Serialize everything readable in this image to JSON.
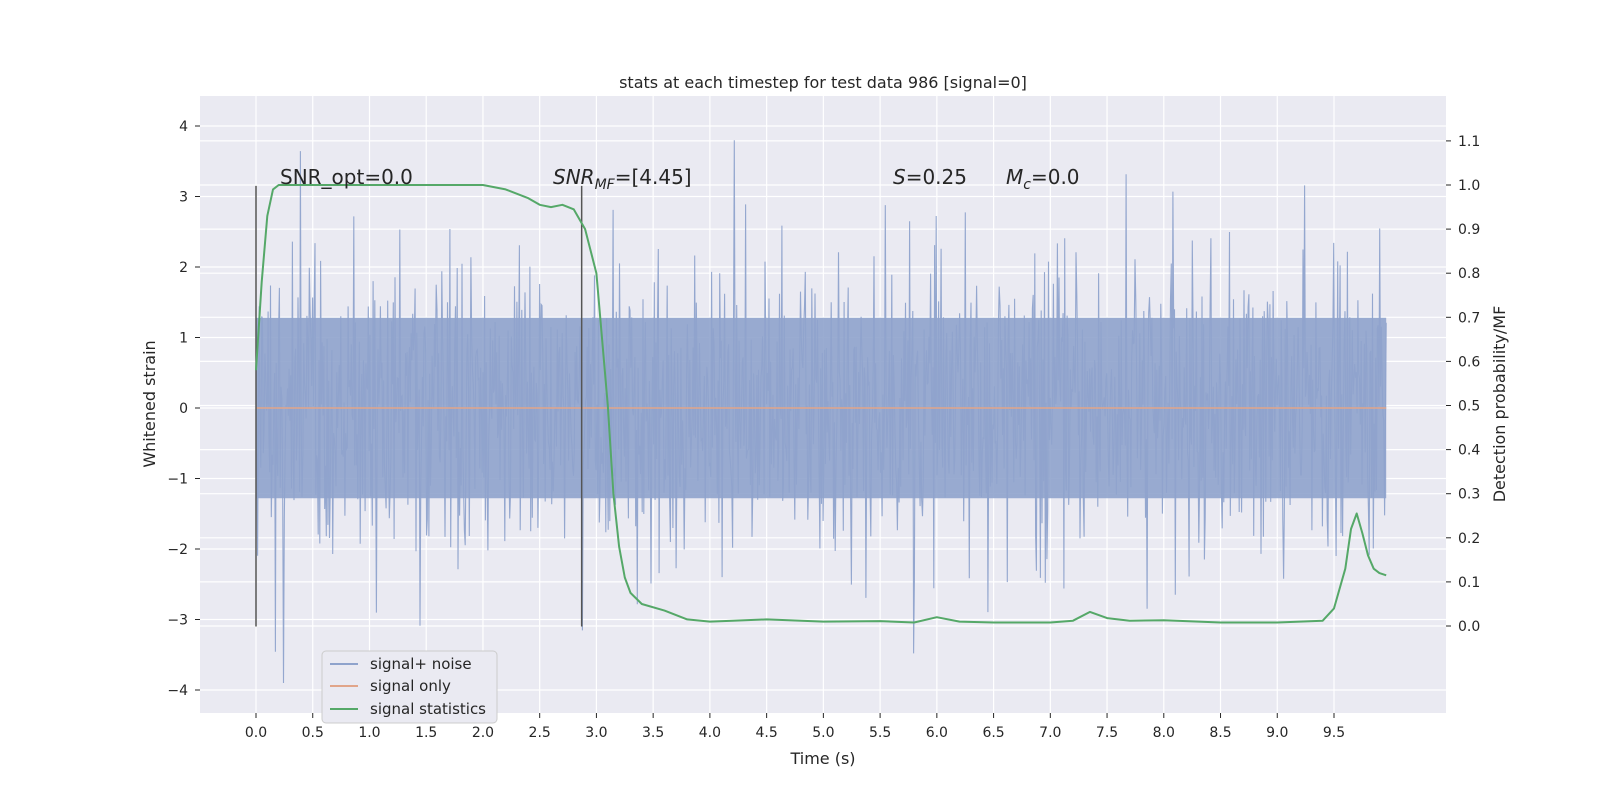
{
  "chart_data": {
    "type": "line",
    "title": "stats at each timestep for test data 986 [signal=0]",
    "xlabel": "Time (s)",
    "ylabel_left": "Whitened strain",
    "ylabel_right": "Detection probability/MF",
    "xlim": [
      -0.5,
      10.5
    ],
    "ylim_left": [
      -4.4,
      4.4
    ],
    "ylim_right": [
      -0.2,
      1.2
    ],
    "x_ticks": [
      "0.0",
      "0.5",
      "1.0",
      "1.5",
      "2.0",
      "2.5",
      "3.0",
      "3.5",
      "4.0",
      "4.5",
      "5.0",
      "5.5",
      "6.0",
      "6.5",
      "7.0",
      "7.5",
      "8.0",
      "8.5",
      "9.0",
      "9.5"
    ],
    "y_ticks_left": [
      "−4",
      "−3",
      "−2",
      "−1",
      "0",
      "1",
      "2",
      "3",
      "4"
    ],
    "y_ticks_right": [
      "0.0",
      "0.1",
      "0.2",
      "0.3",
      "0.4",
      "0.5",
      "0.6",
      "0.7",
      "0.8",
      "0.9",
      "1.0",
      "1.1"
    ],
    "grid": true,
    "legend_position": "lower-left",
    "annotations": {
      "snr_opt": "SNR_opt=0.0",
      "snr_mf_sym": "SNR",
      "snr_mf_sub": "MF",
      "snr_mf_val": "=[4.45]",
      "s_sym": "S",
      "s_val": "=0.25",
      "mc_sym": "M",
      "mc_sub": "c",
      "mc_val": "=0.0"
    },
    "vertical_markers_x": [
      0.0,
      2.87
    ],
    "series": [
      {
        "name": "signal+ noise",
        "color": "#8fa3cc",
        "description": "whitened noise fluctuations between about -3 and +3, occasional spikes to about 4",
        "x_range": [
          0.0,
          9.96
        ],
        "envelope_approx": [
          -3.0,
          3.0
        ]
      },
      {
        "name": "signal only",
        "color": "#e1a58a",
        "x": [
          0.0,
          9.96
        ],
        "y": [
          0.0,
          0.0
        ]
      },
      {
        "name": "signal statistics",
        "color": "#55a868",
        "x": [
          0.0,
          0.05,
          0.1,
          0.15,
          0.2,
          0.3,
          0.5,
          1.0,
          1.5,
          2.0,
          2.2,
          2.4,
          2.5,
          2.6,
          2.7,
          2.8,
          2.9,
          3.0,
          3.1,
          3.15,
          3.2,
          3.25,
          3.3,
          3.4,
          3.6,
          3.8,
          4.0,
          4.2,
          4.5,
          5.0,
          5.5,
          5.8,
          6.0,
          6.2,
          6.5,
          7.0,
          7.2,
          7.35,
          7.5,
          7.7,
          8.0,
          8.5,
          9.0,
          9.4,
          9.5,
          9.6,
          9.65,
          9.7,
          9.75,
          9.8,
          9.85,
          9.9,
          9.96
        ],
        "y": [
          0.58,
          0.78,
          0.93,
          0.99,
          1.0,
          1.0,
          1.0,
          1.0,
          1.0,
          1.0,
          0.99,
          0.97,
          0.955,
          0.95,
          0.955,
          0.945,
          0.9,
          0.8,
          0.5,
          0.3,
          0.18,
          0.11,
          0.075,
          0.05,
          0.035,
          0.015,
          0.01,
          0.012,
          0.015,
          0.01,
          0.011,
          0.008,
          0.02,
          0.01,
          0.008,
          0.008,
          0.012,
          0.032,
          0.018,
          0.012,
          0.013,
          0.008,
          0.008,
          0.012,
          0.04,
          0.13,
          0.22,
          0.255,
          0.21,
          0.16,
          0.13,
          0.12,
          0.115
        ]
      }
    ]
  }
}
